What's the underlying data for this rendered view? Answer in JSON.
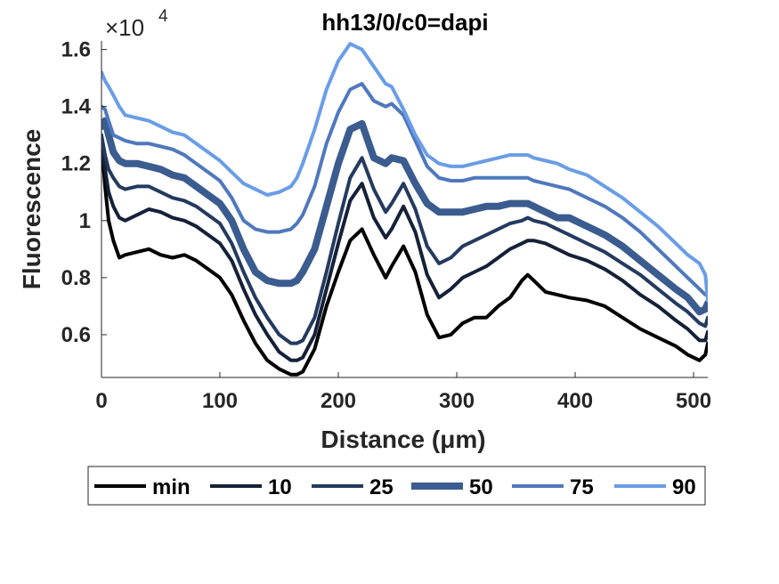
{
  "chart_data": {
    "type": "line",
    "title": "hh13/0/c0=dapi",
    "xlabel": "Distance (μm)",
    "ylabel": "Fluorescence",
    "exponent_label": "×10",
    "exponent_power": "4",
    "xlim": [
      0,
      512
    ],
    "ylim": [
      0.45,
      1.63
    ],
    "xticks": [
      0,
      100,
      200,
      300,
      400,
      500
    ],
    "xtick_labels": [
      "0",
      "100",
      "200",
      "300",
      "400",
      "500"
    ],
    "yticks": [
      0.6,
      0.8,
      1.0,
      1.2,
      1.4,
      1.6
    ],
    "ytick_labels": [
      "0.6",
      "0.8",
      "1",
      "1.2",
      "1.4",
      "1.6"
    ],
    "grid": false,
    "legend_position": "bottom, horizontal",
    "x": [
      0,
      3,
      6,
      10,
      15,
      20,
      30,
      40,
      50,
      60,
      70,
      80,
      90,
      100,
      110,
      120,
      130,
      140,
      150,
      160,
      165,
      170,
      180,
      190,
      200,
      210,
      220,
      230,
      240,
      245,
      255,
      265,
      275,
      285,
      295,
      305,
      315,
      325,
      335,
      345,
      355,
      360,
      365,
      375,
      385,
      395,
      410,
      425,
      440,
      455,
      470,
      485,
      495,
      505,
      510,
      512
    ],
    "series": [
      {
        "name": "min",
        "color": "#000000",
        "width": 4,
        "values": [
          1.28,
          1.12,
          1.0,
          0.93,
          0.87,
          0.88,
          0.89,
          0.9,
          0.88,
          0.87,
          0.88,
          0.86,
          0.83,
          0.8,
          0.74,
          0.65,
          0.57,
          0.51,
          0.48,
          0.46,
          0.46,
          0.47,
          0.55,
          0.7,
          0.82,
          0.93,
          0.97,
          0.88,
          0.8,
          0.84,
          0.91,
          0.82,
          0.67,
          0.59,
          0.6,
          0.64,
          0.66,
          0.66,
          0.7,
          0.73,
          0.79,
          0.81,
          0.79,
          0.75,
          0.74,
          0.73,
          0.72,
          0.7,
          0.66,
          0.62,
          0.59,
          0.56,
          0.53,
          0.51,
          0.53,
          0.57
        ]
      },
      {
        "name": "10",
        "color": "#142138",
        "width": 4,
        "values": [
          1.27,
          1.18,
          1.1,
          1.05,
          1.01,
          1.0,
          1.02,
          1.04,
          1.03,
          1.01,
          1.0,
          0.98,
          0.95,
          0.92,
          0.86,
          0.76,
          0.67,
          0.6,
          0.54,
          0.51,
          0.51,
          0.52,
          0.6,
          0.76,
          0.92,
          1.07,
          1.13,
          1.01,
          0.94,
          0.97,
          1.05,
          0.96,
          0.81,
          0.73,
          0.76,
          0.8,
          0.82,
          0.84,
          0.87,
          0.9,
          0.92,
          0.93,
          0.93,
          0.92,
          0.9,
          0.88,
          0.86,
          0.83,
          0.79,
          0.74,
          0.7,
          0.65,
          0.62,
          0.58,
          0.58,
          0.61
        ]
      },
      {
        "name": "25",
        "color": "#243a5f",
        "width": 4,
        "values": [
          1.3,
          1.23,
          1.18,
          1.15,
          1.12,
          1.11,
          1.12,
          1.12,
          1.1,
          1.08,
          1.07,
          1.05,
          1.02,
          0.99,
          0.92,
          0.82,
          0.73,
          0.66,
          0.6,
          0.57,
          0.57,
          0.58,
          0.66,
          0.82,
          0.99,
          1.15,
          1.22,
          1.11,
          1.03,
          1.06,
          1.13,
          1.04,
          0.91,
          0.85,
          0.87,
          0.91,
          0.93,
          0.95,
          0.97,
          0.99,
          1.0,
          1.01,
          1.0,
          0.99,
          0.97,
          0.95,
          0.92,
          0.89,
          0.85,
          0.81,
          0.76,
          0.71,
          0.68,
          0.64,
          0.63,
          0.66
        ]
      },
      {
        "name": "50",
        "color": "#3b5c8f",
        "width": 8,
        "values": [
          1.33,
          1.35,
          1.3,
          1.24,
          1.21,
          1.2,
          1.2,
          1.19,
          1.18,
          1.16,
          1.15,
          1.12,
          1.09,
          1.06,
          1.0,
          0.9,
          0.82,
          0.79,
          0.78,
          0.78,
          0.79,
          0.82,
          0.9,
          1.05,
          1.2,
          1.32,
          1.34,
          1.22,
          1.2,
          1.22,
          1.21,
          1.13,
          1.06,
          1.03,
          1.03,
          1.03,
          1.04,
          1.05,
          1.05,
          1.06,
          1.06,
          1.06,
          1.05,
          1.03,
          1.01,
          1.01,
          0.98,
          0.95,
          0.91,
          0.86,
          0.81,
          0.76,
          0.73,
          0.68,
          0.69,
          0.71
        ]
      },
      {
        "name": "75",
        "color": "#4f78bd",
        "width": 4,
        "values": [
          1.4,
          1.39,
          1.35,
          1.3,
          1.29,
          1.28,
          1.27,
          1.27,
          1.26,
          1.25,
          1.23,
          1.2,
          1.17,
          1.14,
          1.08,
          1.0,
          0.97,
          0.96,
          0.96,
          0.97,
          0.99,
          1.02,
          1.12,
          1.27,
          1.38,
          1.46,
          1.48,
          1.42,
          1.4,
          1.41,
          1.37,
          1.28,
          1.19,
          1.15,
          1.14,
          1.14,
          1.15,
          1.15,
          1.15,
          1.15,
          1.15,
          1.15,
          1.14,
          1.13,
          1.12,
          1.11,
          1.08,
          1.05,
          1.01,
          0.96,
          0.9,
          0.84,
          0.8,
          0.76,
          0.74,
          0.74
        ]
      },
      {
        "name": "90",
        "color": "#6a9de6",
        "width": 4,
        "values": [
          1.52,
          1.49,
          1.47,
          1.44,
          1.4,
          1.37,
          1.36,
          1.35,
          1.33,
          1.31,
          1.3,
          1.27,
          1.24,
          1.21,
          1.17,
          1.13,
          1.11,
          1.09,
          1.1,
          1.12,
          1.15,
          1.2,
          1.32,
          1.46,
          1.56,
          1.62,
          1.6,
          1.54,
          1.48,
          1.47,
          1.39,
          1.3,
          1.23,
          1.2,
          1.19,
          1.19,
          1.2,
          1.21,
          1.22,
          1.23,
          1.23,
          1.23,
          1.22,
          1.21,
          1.2,
          1.18,
          1.16,
          1.12,
          1.08,
          1.03,
          0.98,
          0.92,
          0.88,
          0.85,
          0.81,
          0.72
        ]
      }
    ]
  }
}
